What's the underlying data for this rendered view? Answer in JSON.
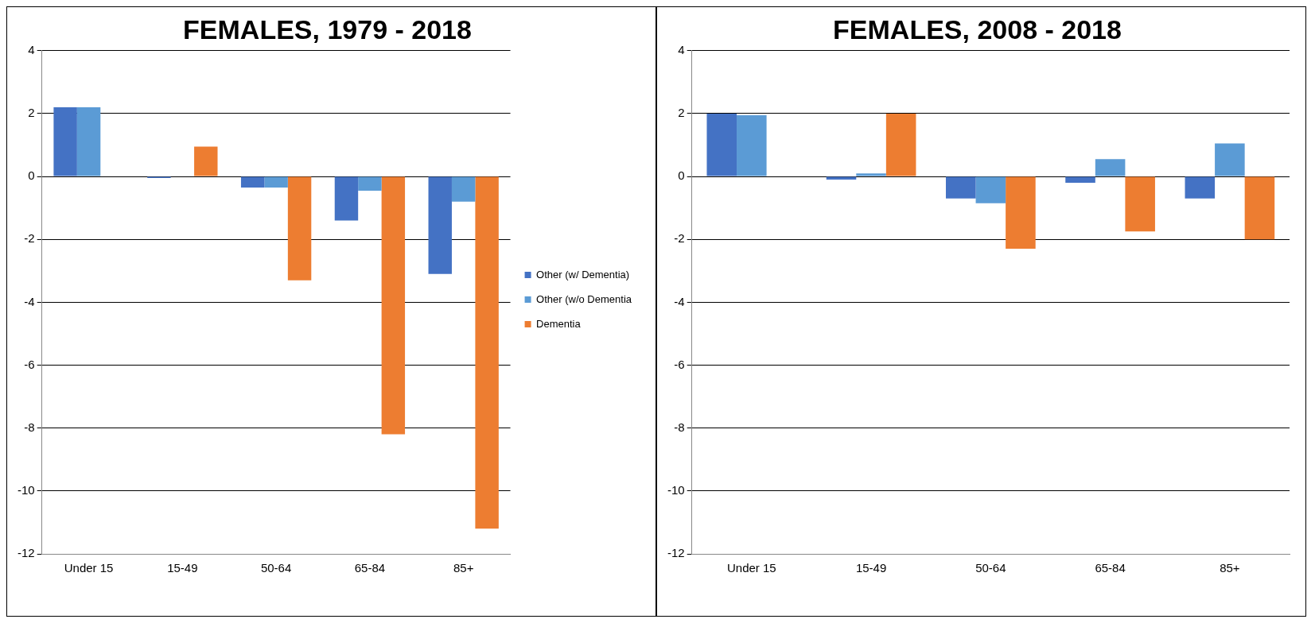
{
  "chart_data": [
    {
      "type": "bar",
      "title": "FEMALES, 1979 - 2018",
      "categories": [
        "Under 15",
        "15-49",
        "50-64",
        "65-84",
        "85+"
      ],
      "series": [
        {
          "name": "Other (w/ Dementia)",
          "color": "#4472c4",
          "values": [
            2.2,
            -0.05,
            -0.35,
            -1.4,
            -3.1
          ]
        },
        {
          "name": "Other (w/o Dementia",
          "color": "#5b9bd5",
          "values": [
            2.2,
            null,
            -0.35,
            -0.45,
            -0.8
          ]
        },
        {
          "name": "Dementia",
          "color": "#ed7d31",
          "values": [
            null,
            0.95,
            -3.3,
            -8.2,
            -11.2
          ]
        }
      ],
      "ylim": [
        -12,
        4
      ],
      "yticks": [
        -12,
        -10,
        -8,
        -6,
        -4,
        -2,
        0,
        2,
        4
      ],
      "grid": "y",
      "legend": "right"
    },
    {
      "type": "bar",
      "title": "FEMALES, 2008 - 2018",
      "categories": [
        "Under 15",
        "15-49",
        "50-64",
        "65-84",
        "85+"
      ],
      "series": [
        {
          "color": "#4472c4",
          "values": [
            2.0,
            -0.1,
            -0.7,
            -0.2,
            -0.7
          ]
        },
        {
          "color": "#5b9bd5",
          "values": [
            1.95,
            0.1,
            -0.85,
            0.55,
            1.05
          ]
        },
        {
          "color": "#ed7d31",
          "values": [
            null,
            2.0,
            -2.3,
            -1.75,
            -2.0
          ]
        }
      ],
      "ylim": [
        -12,
        4
      ],
      "yticks": [
        -12,
        -10,
        -8,
        -6,
        -4,
        -2,
        0,
        2,
        4
      ],
      "grid": "y"
    }
  ]
}
